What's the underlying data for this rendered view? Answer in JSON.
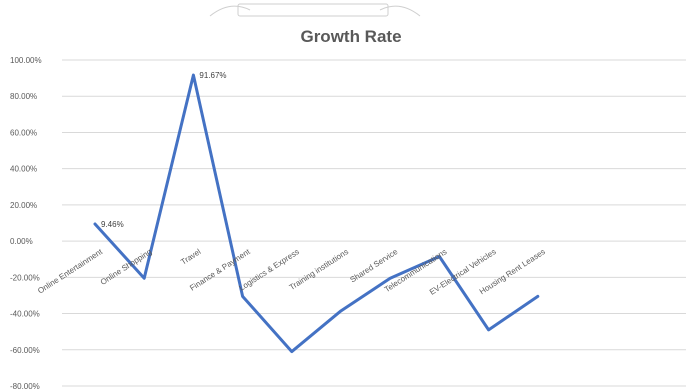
{
  "chart_data": {
    "type": "line",
    "title": "Growth Rate",
    "categories": [
      "Online Entertainment",
      "Online Shopping",
      "Travel",
      "Finance & Payment",
      "Logistics & Express",
      "Training institutions",
      "Shared Service",
      "Telecommunications",
      "EV-Electrical Vehicles",
      "Housing Rent Leases"
    ],
    "series": [
      {
        "values": [
          9.46,
          -20.5,
          91.67,
          -30.5,
          -61.0,
          -38.5,
          -20.5,
          -8.5,
          -49.0,
          -30.5
        ],
        "color": "#4472c4"
      }
    ],
    "data_labels": [
      {
        "index": 0,
        "text": "9.46%"
      },
      {
        "index": 2,
        "text": "91.67%"
      }
    ],
    "yticks": [
      "100.00%",
      "80.00%",
      "60.00%",
      "40.00%",
      "20.00%",
      "0.00%",
      "-20.00%",
      "-40.00%",
      "-60.00%",
      "-80.00%"
    ],
    "ylim": [
      -80,
      100
    ],
    "grid": true
  }
}
